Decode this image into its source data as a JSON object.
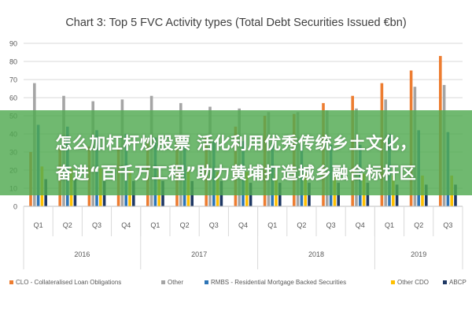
{
  "chart_data": {
    "type": "bar",
    "title": "Chart 3: Top 5 FVC Activity types (Total Debt Securities Issued €bn)",
    "ylim": [
      0,
      90
    ],
    "yticks": [
      0,
      10,
      20,
      30,
      40,
      50,
      60,
      70,
      80,
      90
    ],
    "grid": true,
    "legend_position": "bottom",
    "categories": [
      "Q1",
      "Q2",
      "Q3",
      "Q4",
      "Q1",
      "Q2",
      "Q3",
      "Q4",
      "Q1",
      "Q2",
      "Q3",
      "Q4",
      "Q1",
      "Q2",
      "Q3"
    ],
    "year_groups": [
      {
        "label": "2016",
        "count": 4
      },
      {
        "label": "2017",
        "count": 4
      },
      {
        "label": "2018",
        "count": 4
      },
      {
        "label": "2019",
        "count": 3
      }
    ],
    "series": [
      {
        "name": "CLO - Collateralised Loan Obligations",
        "color": "#ed7d31",
        "values": [
          30,
          32,
          33,
          33,
          37,
          38,
          38,
          44,
          50,
          51,
          57,
          61,
          68,
          75,
          83
        ]
      },
      {
        "name": "Other",
        "color": "#a5a5a5",
        "values": [
          68,
          61,
          58,
          59,
          61,
          57,
          55,
          54,
          52,
          52,
          53,
          54,
          59,
          66,
          67
        ]
      },
      {
        "name": "RMBS - Residential Mortgage Backed Securities",
        "color": "#2e75b6",
        "values": [
          45,
          44,
          42,
          40,
          38,
          37,
          36,
          36,
          35,
          34,
          34,
          34,
          40,
          42,
          41
        ]
      },
      {
        "name": "Other CDO",
        "color": "#ffc000",
        "values": [
          22,
          21,
          21,
          20,
          20,
          20,
          19,
          19,
          18,
          18,
          18,
          18,
          17,
          17,
          17
        ]
      },
      {
        "name": "ABCP",
        "color": "#1f3864",
        "values": [
          15,
          15,
          14,
          14,
          14,
          14,
          14,
          13,
          13,
          13,
          13,
          13,
          12,
          12,
          12
        ]
      }
    ]
  },
  "overlay": {
    "line1": "怎么加杠杆炒股票 活化利用优秀传统乡土文化，",
    "line2": "奋进“百千万工程”助力黄埔打造城乡融合标杆区"
  }
}
